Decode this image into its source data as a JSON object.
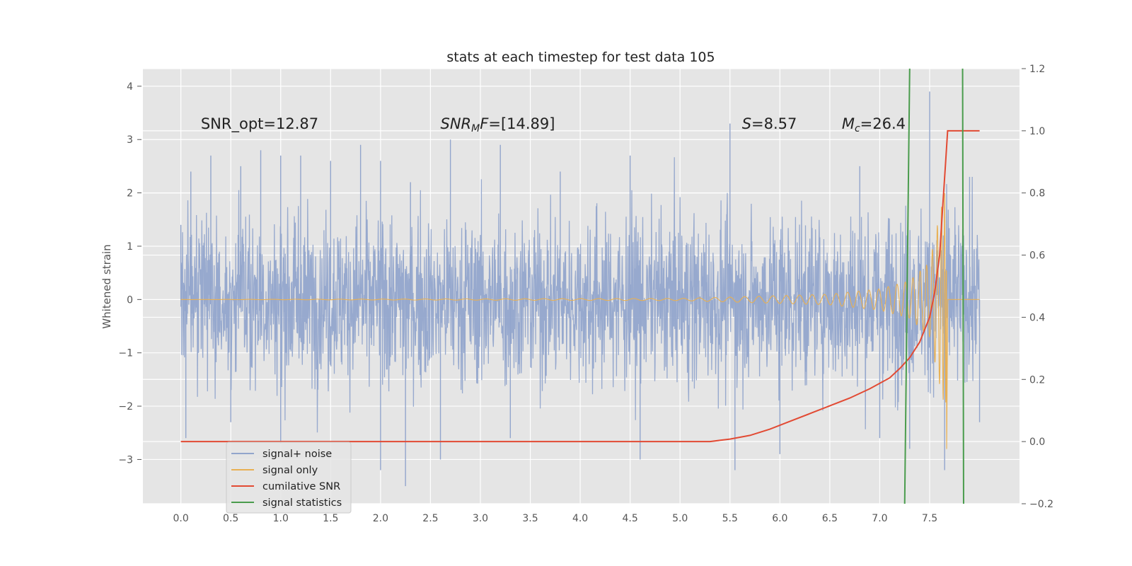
{
  "chart_data": {
    "type": "line",
    "title": "stats at each timestep for test data 105",
    "xlabel": "",
    "ylabel": "Whitened strain",
    "y2label": "",
    "xlim": [
      -0.38,
      8.4
    ],
    "ylim": [
      -3.83,
      4.33
    ],
    "y2lim": [
      -0.2,
      1.2
    ],
    "xticks": [
      "0.0",
      "0.5",
      "1.0",
      "1.5",
      "2.0",
      "2.5",
      "3.0",
      "3.5",
      "4.0",
      "4.5",
      "5.0",
      "5.5",
      "6.0",
      "6.5",
      "7.0",
      "7.5"
    ],
    "yticks": [
      "−3",
      "−2",
      "−1",
      "0",
      "1",
      "2",
      "3",
      "4"
    ],
    "y2ticks": [
      "−0.2",
      "0.0",
      "0.2",
      "0.4",
      "0.6",
      "0.8",
      "1.0",
      "1.2"
    ],
    "grid": true,
    "legend_position": "lower-left",
    "annotations": [
      {
        "parts": [
          {
            "t": "SNR_opt=12.87",
            "i": false
          }
        ],
        "x": 0.2,
        "y": 3.2
      },
      {
        "parts": [
          {
            "t": "SNR",
            "i": true
          },
          {
            "t": "M",
            "i": true,
            "sub": true
          },
          {
            "t": "F",
            "i": true
          },
          {
            "t": "=[14.89]",
            "i": false
          }
        ],
        "x": 2.6,
        "y": 3.2
      },
      {
        "parts": [
          {
            "t": "S",
            "i": true
          },
          {
            "t": "=8.57",
            "i": false
          }
        ],
        "x": 5.62,
        "y": 3.2
      },
      {
        "parts": [
          {
            "t": "M",
            "i": true
          },
          {
            "t": "c",
            "i": true,
            "sub": true
          },
          {
            "t": "=26.4",
            "i": false
          }
        ],
        "x": 6.62,
        "y": 3.2
      }
    ],
    "series": [
      {
        "name": "signal+ noise",
        "axis": "left",
        "color": "#92a5cc",
        "kind": "noise",
        "x_range": [
          0.0,
          8.0
        ],
        "envelope_peaks": [
          [
            0.0,
            1.4
          ],
          [
            0.1,
            2.4
          ],
          [
            0.3,
            2.7
          ],
          [
            0.6,
            2.5
          ],
          [
            0.8,
            2.8
          ],
          [
            1.0,
            2.7
          ],
          [
            1.2,
            2.7
          ],
          [
            1.5,
            2.6
          ],
          [
            1.8,
            2.9
          ],
          [
            2.0,
            2.6
          ],
          [
            2.3,
            2.2
          ],
          [
            2.7,
            3.0
          ],
          [
            3.2,
            2.9
          ],
          [
            3.8,
            2.4
          ],
          [
            4.5,
            2.7
          ],
          [
            5.5,
            3.3
          ],
          [
            6.8,
            2.5
          ],
          [
            7.5,
            3.9
          ],
          [
            7.9,
            2.3
          ]
        ],
        "envelope_troughs": [
          [
            0.05,
            -2.6
          ],
          [
            0.5,
            -2.3
          ],
          [
            1.0,
            -2.7
          ],
          [
            2.0,
            -3.2
          ],
          [
            2.25,
            -3.5
          ],
          [
            2.6,
            -3.0
          ],
          [
            3.3,
            -2.6
          ],
          [
            4.6,
            -3.0
          ],
          [
            5.55,
            -3.2
          ],
          [
            6.0,
            -2.9
          ],
          [
            7.0,
            -2.6
          ],
          [
            7.3,
            -2.8
          ],
          [
            7.65,
            -3.2
          ],
          [
            8.0,
            -2.3
          ]
        ]
      },
      {
        "name": "signal only",
        "axis": "left",
        "color": "#e8b053",
        "kind": "chirp",
        "x_range": [
          0.0,
          8.0
        ],
        "peak_x": 7.67,
        "peak_amplitude_min": -2.9,
        "amplitude_at": [
          [
            5.0,
            0.02
          ],
          [
            6.5,
            0.1
          ],
          [
            7.0,
            0.2
          ],
          [
            7.3,
            0.35
          ],
          [
            7.5,
            0.7
          ],
          [
            7.6,
            1.6
          ],
          [
            7.65,
            2.0
          ],
          [
            8.0,
            0.0
          ]
        ]
      },
      {
        "name": "cumilative SNR",
        "axis": "right",
        "color": "#e24a33",
        "x": [
          0.0,
          5.3,
          5.5,
          5.7,
          5.9,
          6.1,
          6.3,
          6.5,
          6.7,
          6.9,
          7.1,
          7.2,
          7.3,
          7.4,
          7.5,
          7.55,
          7.6,
          7.63,
          7.66,
          7.68,
          7.72,
          8.0
        ],
        "values": [
          0.0,
          0.0,
          0.008,
          0.02,
          0.04,
          0.065,
          0.09,
          0.115,
          0.14,
          0.17,
          0.205,
          0.235,
          0.27,
          0.32,
          0.4,
          0.48,
          0.6,
          0.75,
          0.9,
          1.0,
          1.0,
          1.0
        ]
      },
      {
        "name": "signal statistics",
        "axis": "right",
        "color": "#4a9c4d",
        "kind": "lines",
        "lines": [
          {
            "x_bottom": 7.25,
            "x_top": 7.3
          },
          {
            "x_bottom": 7.84,
            "x_top": 7.83
          }
        ]
      }
    ]
  }
}
